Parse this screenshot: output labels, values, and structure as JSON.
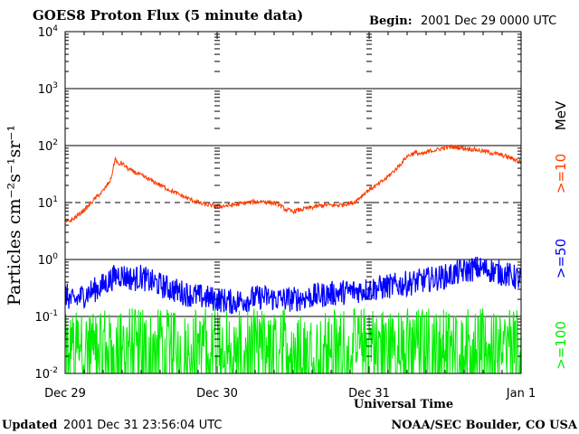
{
  "chart_data": {
    "type": "line",
    "title": "GOES8 Proton Flux (5 minute data)",
    "begin_label": "Begin:",
    "begin_value": "2001 Dec 29 0000 UTC",
    "xlabel": "Universal Time",
    "ylabel": "Particles cm⁻²s⁻¹sr⁻¹",
    "y_scale": "log",
    "ylim": [
      0.01,
      10000
    ],
    "x_unit": "days since 2001 Dec 29 0000 UTC",
    "xlim": [
      0,
      3
    ],
    "x_ticks": [
      {
        "x": 0,
        "label": "Dec 29"
      },
      {
        "x": 1,
        "label": "Dec 30"
      },
      {
        "x": 2,
        "label": "Dec 31"
      },
      {
        "x": 3,
        "label": "Jan 1"
      }
    ],
    "y_ticks": [
      {
        "exp": -2,
        "base": "10",
        "sup": "-2"
      },
      {
        "exp": -1,
        "base": "10",
        "sup": "-1"
      },
      {
        "exp": 0,
        "base": "10",
        "sup": "0"
      },
      {
        "exp": 1,
        "base": "10",
        "sup": "1"
      },
      {
        "exp": 2,
        "base": "10",
        "sup": "2"
      },
      {
        "exp": 3,
        "base": "10",
        "sup": "3"
      },
      {
        "exp": 4,
        "base": "10",
        "sup": "4"
      }
    ],
    "solid_gridlines": [
      -1,
      0,
      2,
      3
    ],
    "dashed_gridlines": [
      1
    ],
    "unit_label": "MeV",
    "series": [
      {
        "name": ">=10",
        "color": "#ff3c00",
        "x": [
          0,
          0.05,
          0.1,
          0.15,
          0.2,
          0.25,
          0.3,
          0.33,
          0.35,
          0.37,
          0.42,
          0.5,
          0.6,
          0.7,
          0.8,
          0.9,
          1.0,
          1.1,
          1.2,
          1.3,
          1.4,
          1.45,
          1.5,
          1.6,
          1.7,
          1.8,
          1.9,
          2.0,
          2.05,
          2.1,
          2.15,
          2.2,
          2.25,
          2.3,
          2.35,
          2.4,
          2.45,
          2.5,
          2.55,
          2.6,
          2.65,
          2.7,
          2.75,
          2.8,
          2.85,
          2.9,
          2.95,
          3.0
        ],
        "values": [
          4.5,
          5.0,
          6.5,
          8.5,
          12,
          16,
          25,
          60,
          45,
          50,
          38,
          30,
          22,
          16,
          12,
          9.5,
          8.5,
          9,
          10,
          10.5,
          9.5,
          7.5,
          7,
          8,
          9,
          9,
          10,
          17,
          20,
          25,
          33,
          45,
          65,
          75,
          70,
          80,
          85,
          92,
          95,
          92,
          88,
          85,
          80,
          75,
          70,
          65,
          58,
          52
        ]
      },
      {
        "name": ">=50",
        "color": "#0000ff",
        "x": [
          0,
          0.05,
          0.1,
          0.15,
          0.2,
          0.25,
          0.3,
          0.35,
          0.4,
          0.45,
          0.5,
          0.55,
          0.6,
          0.7,
          0.8,
          0.9,
          1.0,
          1.1,
          1.2,
          1.3,
          1.4,
          1.5,
          1.6,
          1.7,
          1.8,
          1.9,
          2.0,
          2.1,
          2.2,
          2.3,
          2.4,
          2.5,
          2.6,
          2.7,
          2.8,
          2.9,
          3.0
        ],
        "values": [
          0.25,
          0.18,
          0.22,
          0.26,
          0.3,
          0.35,
          0.45,
          0.55,
          0.5,
          0.45,
          0.5,
          0.42,
          0.38,
          0.3,
          0.25,
          0.22,
          0.2,
          0.18,
          0.2,
          0.22,
          0.2,
          0.2,
          0.22,
          0.24,
          0.26,
          0.28,
          0.3,
          0.33,
          0.36,
          0.4,
          0.45,
          0.5,
          0.6,
          0.7,
          0.65,
          0.55,
          0.45
        ]
      },
      {
        "name": ">=100",
        "color": "#00ee00",
        "x": [
          0,
          0.25,
          0.5,
          0.75,
          1.0,
          1.25,
          1.5,
          1.75,
          2.0,
          2.25,
          2.5,
          2.75,
          3.0
        ],
        "values": [
          0.04,
          0.04,
          0.045,
          0.04,
          0.035,
          0.035,
          0.035,
          0.035,
          0.04,
          0.04,
          0.045,
          0.04,
          0.04
        ],
        "noise_floor": 0.01,
        "noise_peak": 0.14
      }
    ]
  },
  "footer": {
    "updated_label": "Updated",
    "updated_value": "2001 Dec 31 23:56:04 UTC",
    "source": "NOAA/SEC Boulder, CO USA"
  }
}
